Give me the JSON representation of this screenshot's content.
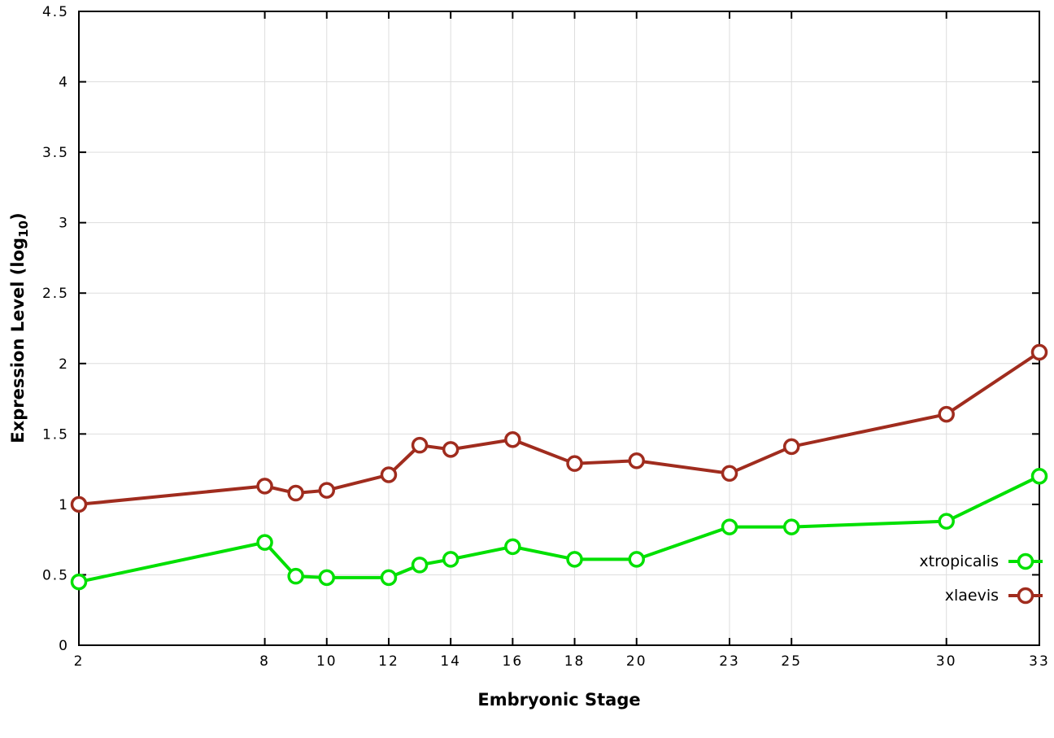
{
  "chart_data": {
    "type": "line",
    "title": "",
    "xlabel": "Embryonic Stage",
    "ylabel": "Expression Level (log10)",
    "ylabel_parts": {
      "prefix": "Expression Level (log",
      "sub": "10",
      "suffix": ")"
    },
    "xlim": [
      2,
      33
    ],
    "ylim": [
      0,
      4.5
    ],
    "xticks": [
      2,
      8,
      10,
      12,
      14,
      16,
      18,
      20,
      23,
      25,
      30,
      33
    ],
    "yticks": [
      0,
      0.5,
      1,
      1.5,
      2,
      2.5,
      3,
      3.5,
      4,
      4.5
    ],
    "grid": true,
    "legend_position": "inside-right-bottom",
    "marker": "open-circle",
    "x": [
      2,
      8,
      9,
      10,
      12,
      13,
      14,
      16,
      18,
      20,
      23,
      25,
      30,
      33
    ],
    "series": [
      {
        "name": "xtropicalis",
        "color": "#00e000",
        "values": [
          0.45,
          0.73,
          0.49,
          0.48,
          0.48,
          0.57,
          0.61,
          0.7,
          0.61,
          0.61,
          0.84,
          0.84,
          0.88,
          1.2
        ]
      },
      {
        "name": "xlaevis",
        "color": "#a02c1e",
        "values": [
          1.0,
          1.13,
          1.08,
          1.1,
          1.21,
          1.42,
          1.39,
          1.46,
          1.29,
          1.31,
          1.22,
          1.41,
          1.64,
          2.08
        ]
      }
    ],
    "colors": {
      "axis": "#000000",
      "grid": "#dddddd",
      "background": "#ffffff"
    }
  }
}
